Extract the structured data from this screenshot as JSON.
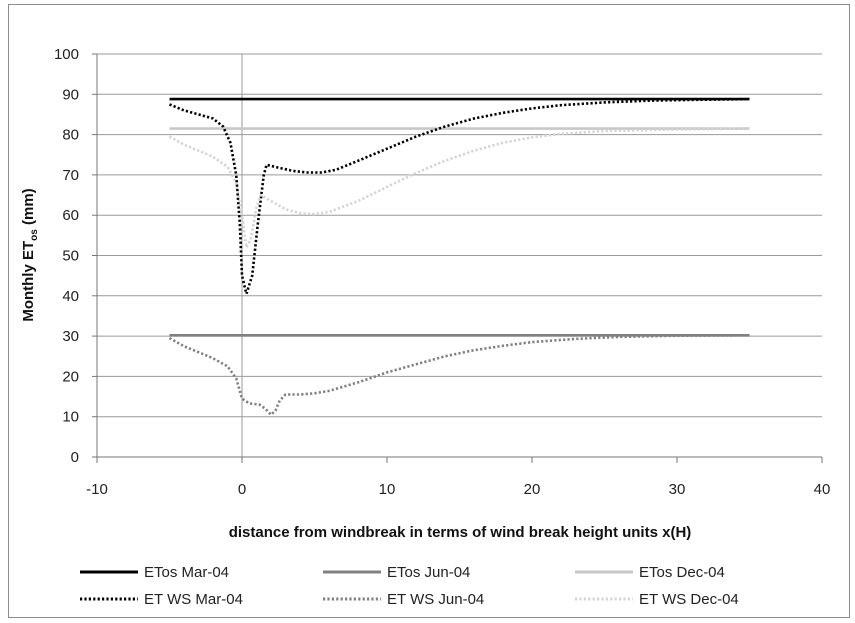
{
  "chart_data": {
    "type": "line",
    "title": "",
    "xlabel": "distance from windbreak in terms of wind break height units x(H)",
    "ylabel_main": "Monthly ET",
    "ylabel_sub": "os",
    "ylabel_unit": " (mm)",
    "xlim": [
      -10,
      40
    ],
    "ylim": [
      0,
      100
    ],
    "xticks": [
      -10,
      0,
      10,
      20,
      30,
      40
    ],
    "yticks": [
      0,
      10,
      20,
      30,
      40,
      50,
      60,
      70,
      80,
      90,
      100
    ],
    "grid": "horizontal",
    "vline_at_x": 0,
    "legend_position": "bottom",
    "series": [
      {
        "name": "ETos Mar-04",
        "color": "#000000",
        "style": "solid",
        "points": [
          [
            -5,
            88.8
          ],
          [
            35,
            88.8
          ]
        ]
      },
      {
        "name": "ETos Jun-04",
        "color": "#808080",
        "style": "solid",
        "points": [
          [
            -5,
            30.2
          ],
          [
            35,
            30.2
          ]
        ]
      },
      {
        "name": "ETos Dec-04",
        "color": "#c8c8c8",
        "style": "solid",
        "points": [
          [
            -5,
            81.5
          ],
          [
            35,
            81.5
          ]
        ]
      },
      {
        "name": "ET WS Mar-04",
        "color": "#000000",
        "style": "dotted",
        "points": [
          [
            -5,
            87.5
          ],
          [
            -4,
            86
          ],
          [
            -3,
            85
          ],
          [
            -2,
            84
          ],
          [
            -1.3,
            82
          ],
          [
            -0.8,
            78
          ],
          [
            -0.4,
            70
          ],
          [
            -0.15,
            58
          ],
          [
            0,
            45
          ],
          [
            0.3,
            40.5
          ],
          [
            0.7,
            45
          ],
          [
            1.1,
            58
          ],
          [
            1.5,
            70
          ],
          [
            1.7,
            72.5
          ],
          [
            2.5,
            71.8
          ],
          [
            3.5,
            71
          ],
          [
            4.5,
            70.6
          ],
          [
            5.5,
            70.6
          ],
          [
            6.5,
            71.3
          ],
          [
            8,
            73.5
          ],
          [
            10,
            76.5
          ],
          [
            12,
            79.5
          ],
          [
            14,
            82
          ],
          [
            16,
            84
          ],
          [
            18,
            85.4
          ],
          [
            20,
            86.5
          ],
          [
            22,
            87.3
          ],
          [
            25,
            88
          ],
          [
            28,
            88.4
          ],
          [
            31,
            88.6
          ],
          [
            35,
            88.8
          ]
        ]
      },
      {
        "name": "ET WS Jun-04",
        "color": "#808080",
        "style": "dotted",
        "points": [
          [
            -5,
            29.5
          ],
          [
            -4,
            27.5
          ],
          [
            -3,
            26
          ],
          [
            -2,
            24.5
          ],
          [
            -1,
            22.5
          ],
          [
            -0.4,
            19.5
          ],
          [
            0,
            14.5
          ],
          [
            0.5,
            13.3
          ],
          [
            1.2,
            13
          ],
          [
            1.6,
            12
          ],
          [
            2,
            10.5
          ],
          [
            2.3,
            11.5
          ],
          [
            2.6,
            14
          ],
          [
            3,
            15.5
          ],
          [
            4,
            15.5
          ],
          [
            5,
            15.8
          ],
          [
            6,
            16.4
          ],
          [
            8,
            18.5
          ],
          [
            10,
            21
          ],
          [
            12,
            23
          ],
          [
            14,
            25
          ],
          [
            16,
            26.5
          ],
          [
            18,
            27.6
          ],
          [
            20,
            28.5
          ],
          [
            23,
            29.3
          ],
          [
            26,
            29.8
          ],
          [
            30,
            30.1
          ],
          [
            35,
            30.2
          ]
        ]
      },
      {
        "name": "ET WS Dec-04",
        "color": "#d4d4d4",
        "style": "dotted",
        "points": [
          [
            -5,
            79.5
          ],
          [
            -4,
            77.5
          ],
          [
            -3,
            76
          ],
          [
            -2,
            74.5
          ],
          [
            -1,
            72
          ],
          [
            -0.4,
            68
          ],
          [
            0,
            60
          ],
          [
            0.3,
            52
          ],
          [
            0.6,
            54
          ],
          [
            1,
            62
          ],
          [
            1.3,
            65
          ],
          [
            2,
            63.5
          ],
          [
            3,
            61.5
          ],
          [
            4,
            60.5
          ],
          [
            5,
            60.3
          ],
          [
            6,
            60.8
          ],
          [
            8,
            63.5
          ],
          [
            10,
            67
          ],
          [
            12,
            70.5
          ],
          [
            14,
            73.5
          ],
          [
            16,
            76
          ],
          [
            18,
            78
          ],
          [
            20,
            79.3
          ],
          [
            22,
            80.2
          ],
          [
            25,
            80.9
          ],
          [
            30,
            81.3
          ],
          [
            35,
            81.5
          ]
        ]
      }
    ]
  }
}
